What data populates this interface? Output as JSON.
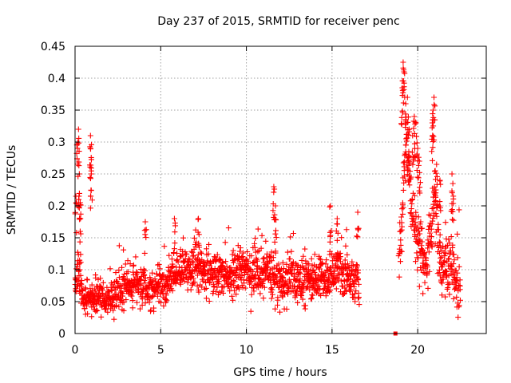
{
  "chart_data": {
    "type": "scatter",
    "title": "Day 237 of 2015, SRMTID for receiver penc",
    "xlabel": "GPS time / hours",
    "ylabel": "SRMTID / TECUs",
    "xlim": [
      0,
      24
    ],
    "ylim": [
      0,
      0.45
    ],
    "xticks": [
      0,
      5,
      10,
      15,
      20
    ],
    "yticks": [
      0,
      0.05,
      0.1,
      0.15,
      0.2,
      0.25,
      0.3,
      0.35,
      0.4,
      0.45
    ],
    "grid": true,
    "marker": "+",
    "marker_color": "#ff0000",
    "legend": "none",
    "series": [
      {
        "name": "SRMTID",
        "segments": [
          {
            "x": [
              0.0,
              0.1,
              0.15,
              0.2,
              0.25,
              0.3,
              0.35,
              0.4,
              0.45,
              0.5,
              0.6,
              0.7,
              0.8,
              0.85,
              0.9,
              0.95,
              1.0,
              1.2,
              1.4,
              1.6,
              1.8,
              2.0,
              2.2,
              2.4,
              2.6,
              2.8,
              3.0,
              3.2,
              3.4,
              3.6,
              3.8,
              4.0,
              4.2,
              4.4,
              4.6,
              4.8,
              5.0,
              5.2,
              5.4,
              5.6,
              5.8,
              6.0,
              6.2,
              6.4,
              6.6,
              6.8,
              7.0,
              7.2,
              7.4,
              7.6,
              7.8,
              8.0,
              8.2,
              8.4,
              8.6,
              8.8,
              9.0,
              9.2,
              9.4,
              9.6,
              9.8,
              10.0,
              10.2,
              10.4,
              10.6,
              10.8,
              11.0,
              11.2,
              11.4,
              11.6,
              11.8,
              12.0,
              12.2,
              12.4,
              12.6,
              12.8,
              13.0,
              13.2,
              13.4,
              13.6,
              13.8,
              14.0,
              14.2,
              14.4,
              14.6,
              14.8,
              15.0,
              15.2,
              15.4,
              15.6,
              15.8,
              16.0,
              16.2,
              16.4,
              16.6
            ],
            "y": [
              0.07,
              0.08,
              0.12,
              0.1,
              0.09,
              0.08,
              0.07,
              0.06,
              0.06,
              0.05,
              0.05,
              0.05,
              0.05,
              0.06,
              0.06,
              0.055,
              0.055,
              0.055,
              0.06,
              0.055,
              0.05,
              0.055,
              0.06,
              0.065,
              0.065,
              0.07,
              0.075,
              0.075,
              0.08,
              0.08,
              0.075,
              0.07,
              0.065,
              0.065,
              0.07,
              0.075,
              0.075,
              0.075,
              0.08,
              0.085,
              0.09,
              0.095,
              0.1,
              0.105,
              0.1,
              0.1,
              0.11,
              0.105,
              0.1,
              0.1,
              0.105,
              0.1,
              0.095,
              0.095,
              0.095,
              0.09,
              0.09,
              0.095,
              0.1,
              0.1,
              0.1,
              0.1,
              0.095,
              0.095,
              0.1,
              0.095,
              0.09,
              0.09,
              0.09,
              0.085,
              0.085,
              0.08,
              0.08,
              0.085,
              0.09,
              0.09,
              0.085,
              0.08,
              0.08,
              0.085,
              0.085,
              0.085,
              0.085,
              0.09,
              0.09,
              0.09,
              0.09,
              0.095,
              0.1,
              0.095,
              0.09,
              0.09,
              0.085,
              0.085,
              0.085
            ]
          },
          {
            "x": [
              18.7
            ],
            "y": [
              0.0
            ]
          },
          {
            "x": [
              18.9,
              19.0,
              19.1,
              19.2,
              19.3,
              19.4,
              19.5,
              19.6,
              19.7,
              19.8,
              19.9,
              20.0,
              20.1,
              20.2,
              20.3,
              20.4,
              20.5,
              20.6,
              20.7,
              20.8,
              20.9,
              21.0,
              21.1,
              21.2,
              21.3,
              21.4,
              21.5,
              21.6,
              21.7,
              21.8,
              21.9,
              22.0,
              22.1,
              22.2,
              22.3,
              22.4,
              22.5
            ],
            "y": [
              0.12,
              0.14,
              0.2,
              0.26,
              0.3,
              0.28,
              0.25,
              0.22,
              0.2,
              0.18,
              0.16,
              0.15,
              0.14,
              0.13,
              0.12,
              0.11,
              0.11,
              0.12,
              0.14,
              0.16,
              0.2,
              0.22,
              0.18,
              0.15,
              0.13,
              0.12,
              0.11,
              0.1,
              0.1,
              0.11,
              0.12,
              0.11,
              0.1,
              0.09,
              0.09,
              0.085,
              0.08
            ]
          }
        ],
        "spread": [
          {
            "x": [
              0,
              6
            ],
            "y": [
              0.02,
              0.06
            ]
          },
          {
            "x": [
              6,
              16.6
            ],
            "y": [
              0.035,
              0.07
            ]
          },
          {
            "x": [
              18.9,
              22.6
            ],
            "y": [
              0.05,
              0.1
            ]
          }
        ],
        "spikes": [
          {
            "x": 0.05,
            "y": 0.215
          },
          {
            "x": 0.15,
            "y": 0.3
          },
          {
            "x": 0.2,
            "y": 0.32
          },
          {
            "x": 0.25,
            "y": 0.25
          },
          {
            "x": 0.3,
            "y": 0.205
          },
          {
            "x": 0.3,
            "y": 0.16
          },
          {
            "x": 0.9,
            "y": 0.29
          },
          {
            "x": 0.9,
            "y": 0.31
          },
          {
            "x": 0.95,
            "y": 0.25
          },
          {
            "x": 4.1,
            "y": 0.175
          },
          {
            "x": 5.8,
            "y": 0.18
          },
          {
            "x": 7.2,
            "y": 0.18
          },
          {
            "x": 11.6,
            "y": 0.23
          },
          {
            "x": 11.7,
            "y": 0.2
          },
          {
            "x": 14.9,
            "y": 0.2
          },
          {
            "x": 15.3,
            "y": 0.18
          },
          {
            "x": 16.5,
            "y": 0.19
          },
          {
            "x": 19.15,
            "y": 0.425
          },
          {
            "x": 19.2,
            "y": 0.41
          },
          {
            "x": 19.1,
            "y": 0.385
          },
          {
            "x": 19.3,
            "y": 0.36
          },
          {
            "x": 19.4,
            "y": 0.37
          },
          {
            "x": 19.5,
            "y": 0.32
          },
          {
            "x": 19.7,
            "y": 0.31
          },
          {
            "x": 19.8,
            "y": 0.34
          },
          {
            "x": 19.9,
            "y": 0.33
          },
          {
            "x": 20.0,
            "y": 0.29
          },
          {
            "x": 20.1,
            "y": 0.27
          },
          {
            "x": 20.95,
            "y": 0.37
          },
          {
            "x": 20.9,
            "y": 0.35
          },
          {
            "x": 20.85,
            "y": 0.33
          },
          {
            "x": 21.1,
            "y": 0.265
          },
          {
            "x": 21.3,
            "y": 0.24
          },
          {
            "x": 22.0,
            "y": 0.25
          },
          {
            "x": 22.05,
            "y": 0.235
          }
        ]
      }
    ]
  }
}
